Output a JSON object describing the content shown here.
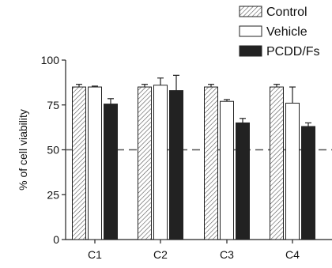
{
  "chart_data": {
    "type": "bar",
    "title": "",
    "xlabel": "",
    "ylabel": "% of cell viability",
    "ylim": [
      0,
      100
    ],
    "yticks": [
      0,
      25,
      50,
      75,
      100
    ],
    "categories": [
      "C1",
      "C2",
      "C3",
      "C4"
    ],
    "reference_line": {
      "value": 50,
      "style": "dashed"
    },
    "legend": {
      "placement": "top-right"
    },
    "series": [
      {
        "name": "Control",
        "pattern": "hatched",
        "color": "#ffffff",
        "stroke": "#222222",
        "values": [
          85,
          85,
          85,
          85
        ],
        "errors": [
          1.5,
          1.5,
          1.5,
          1.5
        ]
      },
      {
        "name": "Vehicle",
        "pattern": "solid",
        "color": "#ffffff",
        "stroke": "#222222",
        "values": [
          85,
          86,
          77,
          76
        ],
        "errors": [
          0.5,
          4,
          1,
          9
        ]
      },
      {
        "name": "PCDD/Fs",
        "pattern": "solid",
        "color": "#222222",
        "stroke": "#222222",
        "values": [
          75.5,
          83,
          65,
          63
        ],
        "errors": [
          3,
          8.5,
          2.5,
          2
        ]
      }
    ]
  }
}
